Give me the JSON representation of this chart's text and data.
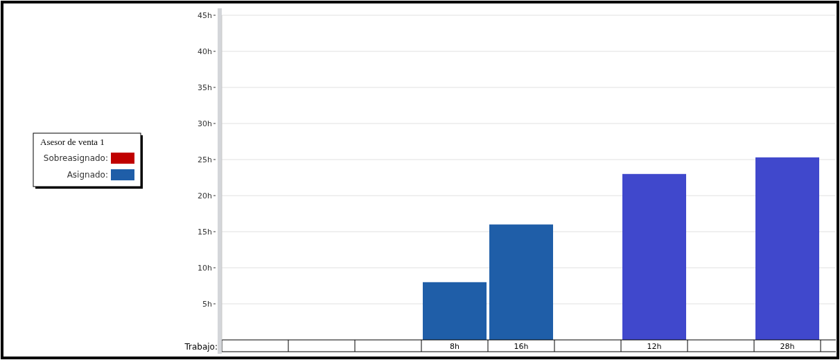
{
  "chart_data": {
    "type": "bar",
    "legend_title": "Asesor de venta 1",
    "xlabel": "Trabajo:",
    "categories": [
      null,
      null,
      null,
      "8h",
      "16h",
      null,
      "12h",
      null,
      "28h",
      null
    ],
    "series": [
      {
        "name": "Sobreasignado:",
        "color": "#c00000",
        "values": [
          null,
          null,
          null,
          null,
          null,
          null,
          null,
          null,
          null,
          null
        ]
      },
      {
        "name": "Asignado:",
        "color": "#1f5ea8",
        "values": [
          null,
          null,
          null,
          8,
          16,
          null,
          null,
          null,
          null,
          null
        ]
      },
      {
        "color": "#4048cc",
        "values": [
          null,
          null,
          null,
          null,
          null,
          null,
          23,
          null,
          25.3,
          null
        ]
      }
    ],
    "ylim": [
      0,
      45
    ],
    "yticks": [
      {
        "value": 5,
        "label": "5h"
      },
      {
        "value": 10,
        "label": "10h"
      },
      {
        "value": 15,
        "label": "15h"
      },
      {
        "value": 20,
        "label": "20h"
      },
      {
        "value": 25,
        "label": "25h"
      },
      {
        "value": 30,
        "label": "30h"
      },
      {
        "value": 35,
        "label": "35h"
      },
      {
        "value": 40,
        "label": "40h"
      },
      {
        "value": 45,
        "label": "45h"
      }
    ],
    "grid": "y",
    "legend": "left"
  }
}
